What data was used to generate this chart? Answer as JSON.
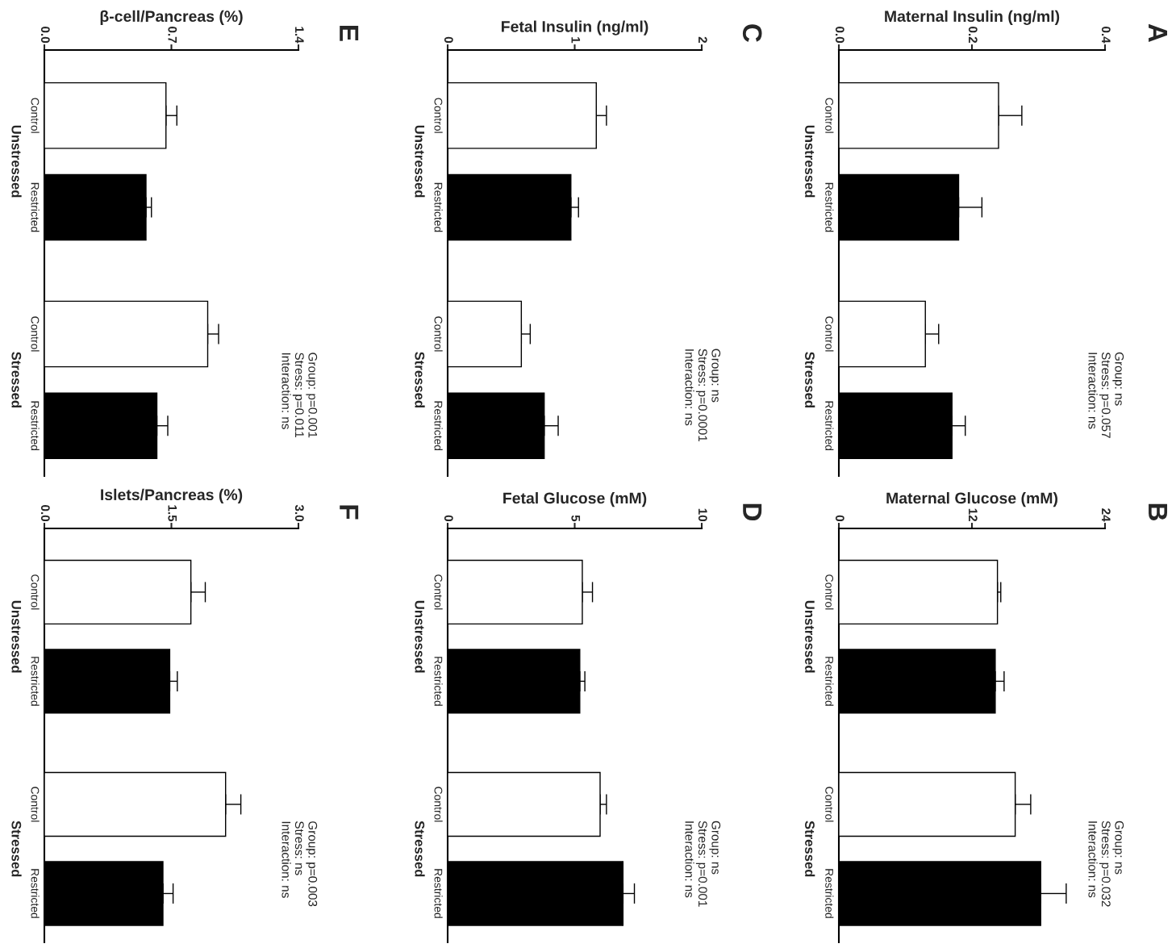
{
  "chart_data": [
    {
      "type": "bar",
      "orientation": "horizontal",
      "xlabel": "Maternal Insulin (ng/ml)",
      "categories": [
        "Unstressed",
        "Stressed"
      ],
      "xlim": [
        0,
        0.4
      ],
      "xticks": [
        {
          "value": 0,
          "label": "0.0"
        },
        {
          "value": 0.2,
          "label": "0.2"
        },
        {
          "value": 0.4,
          "label": "0.4"
        }
      ],
      "annotations": [
        "A",
        "Group: ns\nStress: p=0.057\nInteraction: ns"
      ],
      "series": [
        {
          "name": "Control",
          "color": "#ffffff",
          "values": [
            0.24,
            0.13
          ],
          "errors": [
            [
              0.24,
              0.275
            ],
            [
              0.13,
              0.15
            ]
          ]
        },
        {
          "name": "Restricted",
          "color": "#000000",
          "values": [
            0.18,
            0.17
          ],
          "errors": [
            [
              0.18,
              0.215
            ],
            [
              0.17,
              0.19
            ]
          ]
        }
      ]
    },
    {
      "type": "bar",
      "orientation": "horizontal",
      "xlabel": "Maternal Glucose (mM)",
      "categories": [
        "Unstressed",
        "Stressed"
      ],
      "xlim": [
        0,
        24
      ],
      "xticks": [
        0,
        12,
        24
      ],
      "annotations": [
        "B",
        "Group: ns\nStress: p=0.032\nInteraction: ns"
      ],
      "series": [
        {
          "name": "Control",
          "color": "#ffffff",
          "values": [
            14.3,
            15.9
          ],
          "errors": [
            [
              14.3,
              14.6
            ],
            [
              15.9,
              17.3
            ]
          ]
        },
        {
          "name": "Restricted",
          "color": "#000000",
          "values": [
            14.1,
            18.2
          ],
          "errors": [
            [
              14.1,
              14.9
            ],
            [
              18.2,
              20.5
            ]
          ]
        }
      ]
    },
    {
      "type": "bar",
      "orientation": "horizontal",
      "xlabel": "Fetal Insulin (ng/ml)",
      "categories": [
        "Unstressed",
        "Stressed"
      ],
      "xlim": [
        0,
        2
      ],
      "xticks": [
        0,
        1,
        2
      ],
      "annotations": [
        "C",
        "Group: ns\nStress: p=0.0001\nInteraction: ns"
      ],
      "series": [
        {
          "name": "Control",
          "color": "#ffffff",
          "values": [
            1.17,
            0.58
          ],
          "errors": [
            [
              1.17,
              1.25
            ],
            [
              0.58,
              0.65
            ]
          ]
        },
        {
          "name": "Restricted",
          "color": "#000000",
          "values": [
            0.97,
            0.76
          ],
          "errors": [
            [
              0.97,
              1.03
            ],
            [
              0.76,
              0.87
            ]
          ]
        }
      ]
    },
    {
      "type": "bar",
      "orientation": "horizontal",
      "xlabel": "Fetal Glucose (mM)",
      "categories": [
        "Unstressed",
        "Stressed"
      ],
      "xlim": [
        0,
        10
      ],
      "xticks": [
        0,
        5,
        10
      ],
      "annotations": [
        "D",
        "Group: ns\nStress: p=0.001\nInteraction: ns"
      ],
      "series": [
        {
          "name": "Control",
          "color": "#ffffff",
          "values": [
            5.3,
            6.0
          ],
          "errors": [
            [
              5.3,
              5.7
            ],
            [
              6.0,
              6.25
            ]
          ]
        },
        {
          "name": "Restricted",
          "color": "#000000",
          "values": [
            5.2,
            6.9
          ],
          "errors": [
            [
              5.2,
              5.4
            ],
            [
              6.9,
              7.35
            ]
          ]
        }
      ]
    },
    {
      "type": "bar",
      "orientation": "horizontal",
      "xlabel": "β-cell/Pancreas (%)",
      "categories": [
        "Unstressed",
        "Stressed"
      ],
      "xlim": [
        0,
        1.4
      ],
      "xticks": [
        {
          "value": 0,
          "label": "0.0"
        },
        {
          "value": 0.7,
          "label": "0.7"
        },
        {
          "value": 1.4,
          "label": "1.4"
        }
      ],
      "annotations": [
        "E",
        "Group: p=0.001\nStress: p=0.011\nInteraction: ns"
      ],
      "series": [
        {
          "name": "Control",
          "color": "#ffffff",
          "values": [
            0.67,
            0.9
          ],
          "errors": [
            [
              0.67,
              0.73
            ],
            [
              0.9,
              0.96
            ]
          ]
        },
        {
          "name": "Restricted",
          "color": "#000000",
          "values": [
            0.56,
            0.62
          ],
          "errors": [
            [
              0.56,
              0.59
            ],
            [
              0.62,
              0.68
            ]
          ]
        }
      ]
    },
    {
      "type": "bar",
      "orientation": "horizontal",
      "xlabel": "Islets/Pancreas (%)",
      "categories": [
        "Unstressed",
        "Stressed"
      ],
      "xlim": [
        0,
        3.0
      ],
      "xticks": [
        {
          "value": 0,
          "label": "0.0"
        },
        {
          "value": 1.5,
          "label": "1.5"
        },
        {
          "value": 3.0,
          "label": "3.0"
        }
      ],
      "annotations": [
        "F",
        "Group: p=0.003\nStress: ns\nInteraction: ns"
      ],
      "series": [
        {
          "name": "Control",
          "color": "#ffffff",
          "values": [
            1.73,
            2.14
          ],
          "errors": [
            [
              1.73,
              1.9
            ],
            [
              2.14,
              2.32
            ]
          ]
        },
        {
          "name": "Restricted",
          "color": "#000000",
          "values": [
            1.48,
            1.4
          ],
          "errors": [
            [
              1.48,
              1.57
            ],
            [
              1.4,
              1.52
            ]
          ]
        }
      ]
    }
  ]
}
